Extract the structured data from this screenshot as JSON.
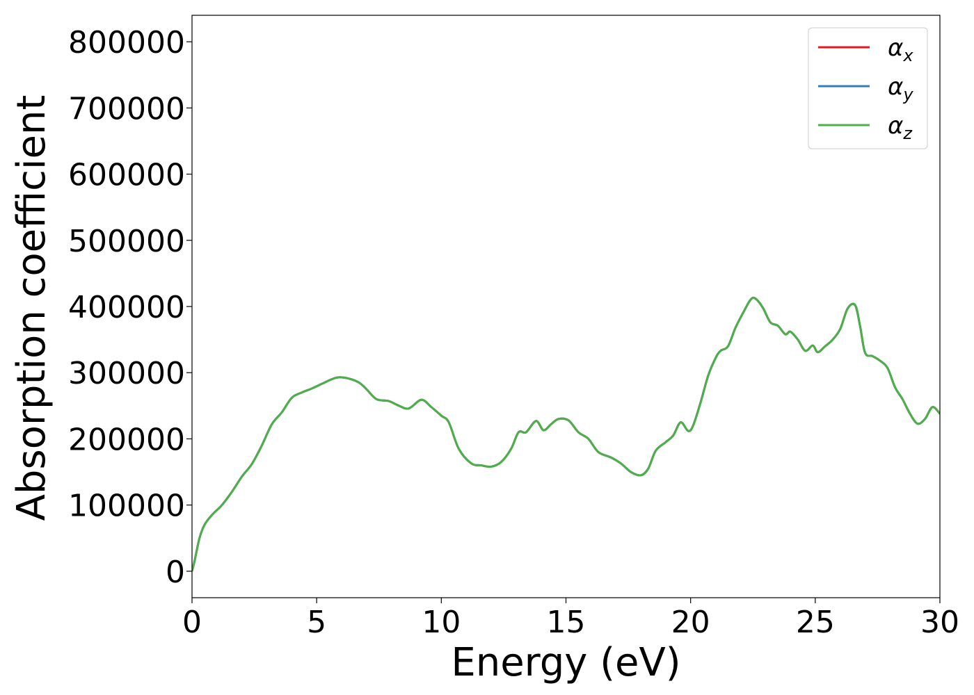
{
  "chart_data": {
    "type": "line",
    "title": "",
    "xlabel": "Energy (eV)",
    "ylabel": "Absorption coefficient",
    "xlim": [
      0,
      30
    ],
    "ylim": [
      -40000,
      840000
    ],
    "xticks": [
      0,
      5,
      10,
      15,
      20,
      25,
      30
    ],
    "yticks": [
      0,
      100000,
      200000,
      300000,
      400000,
      500000,
      600000,
      700000,
      800000
    ],
    "grid": false,
    "legend_position": "top-right",
    "series": [
      {
        "name": "α",
        "sub": "x",
        "color": "#e41a1c"
      },
      {
        "name": "α",
        "sub": "y",
        "color": "#377eb8"
      },
      {
        "name": "α",
        "sub": "z",
        "color": "#4daf4a"
      }
    ],
    "x": [
      0,
      0.1,
      0.3,
      0.5,
      0.8,
      1.2,
      1.6,
      2.0,
      2.4,
      2.8,
      3.2,
      3.6,
      4.0,
      4.4,
      4.8,
      5.2,
      5.6,
      5.9,
      6.3,
      6.7,
      7.0,
      7.4,
      7.9,
      8.3,
      8.7,
      9.2,
      9.6,
      10.0,
      10.3,
      10.7,
      11.2,
      11.6,
      12.0,
      12.4,
      12.8,
      13.1,
      13.4,
      13.8,
      14.1,
      14.4,
      14.7,
      15.1,
      15.5,
      15.9,
      16.3,
      16.8,
      17.2,
      17.6,
      18.0,
      18.3,
      18.6,
      19.0,
      19.3,
      19.6,
      19.9,
      20.1,
      20.4,
      20.7,
      21.0,
      21.2,
      21.5,
      21.8,
      22.1,
      22.4,
      22.6,
      22.9,
      23.2,
      23.5,
      23.8,
      24.0,
      24.3,
      24.6,
      24.9,
      25.1,
      25.4,
      25.7,
      26.0,
      26.3,
      26.6,
      26.8,
      27.0,
      27.3,
      27.6,
      27.9,
      28.2,
      28.5,
      28.8,
      29.1,
      29.4,
      29.7,
      30.0
    ],
    "values": [
      0,
      15000,
      50000,
      70000,
      85000,
      100000,
      120000,
      143000,
      162000,
      190000,
      222000,
      240000,
      262000,
      270000,
      276000,
      283000,
      290000,
      293000,
      291000,
      285000,
      275000,
      260000,
      257000,
      250000,
      246000,
      259000,
      248000,
      235000,
      225000,
      185000,
      163000,
      160000,
      158000,
      165000,
      185000,
      210000,
      210000,
      227000,
      213000,
      222000,
      230000,
      228000,
      210000,
      200000,
      180000,
      172000,
      163000,
      150000,
      145000,
      155000,
      182000,
      195000,
      205000,
      225000,
      212000,
      220000,
      255000,
      295000,
      322000,
      333000,
      340000,
      368000,
      390000,
      410000,
      412000,
      398000,
      376000,
      371000,
      358000,
      362000,
      350000,
      333000,
      341000,
      331000,
      340000,
      350000,
      366000,
      397000,
      402000,
      370000,
      330000,
      325000,
      318000,
      307000,
      278000,
      260000,
      238000,
      223000,
      230000,
      248000,
      238000
    ]
  }
}
